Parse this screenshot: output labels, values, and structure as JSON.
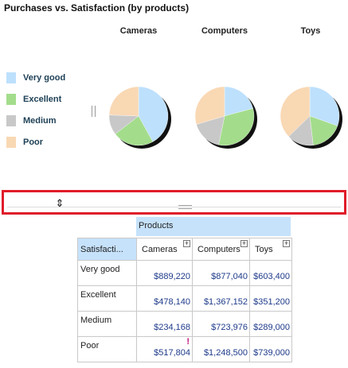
{
  "chart_data": {
    "type": "pie",
    "title": "Purchases vs. Satisfaction (by products)",
    "categories": [
      "Cameras",
      "Computers",
      "Toys"
    ],
    "legend": [
      "Very good",
      "Excellent",
      "Medium",
      "Poor"
    ],
    "colors": [
      "#bde0fd",
      "#a3dd8c",
      "#c8c8c8",
      "#f9d8b4"
    ],
    "series": [
      {
        "name": "Very good",
        "values": [
          889220,
          877040,
          603400
        ]
      },
      {
        "name": "Excellent",
        "values": [
          478140,
          1367152,
          351200
        ]
      },
      {
        "name": "Medium",
        "values": [
          234168,
          723976,
          289000
        ]
      },
      {
        "name": "Poor",
        "values": [
          517804,
          1248500,
          739000
        ]
      }
    ]
  },
  "table": {
    "column_group": "Products",
    "row_header": "Satisfacti...",
    "columns": [
      "Cameras",
      "Computers",
      "Toys"
    ],
    "plus_glyph": "+",
    "rows": [
      {
        "label": "Very good",
        "cells": [
          "$889,220",
          "$877,040",
          "$603,400"
        ]
      },
      {
        "label": "Excellent",
        "cells": [
          "$478,140",
          "$1,367,152",
          "$351,200"
        ]
      },
      {
        "label": "Medium",
        "cells": [
          "$234,168",
          "$723,976",
          "$289,000"
        ]
      },
      {
        "label": "Poor",
        "cells": [
          "$517,804",
          "$1,248,500",
          "$739,000"
        ],
        "flag": "!"
      }
    ]
  },
  "splitter": {
    "arrow_glyph": "⇕"
  }
}
